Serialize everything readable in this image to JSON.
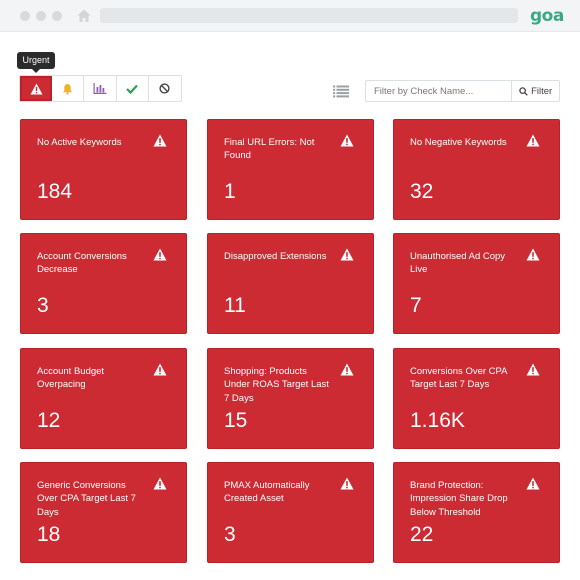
{
  "browser": {
    "logo": "goa"
  },
  "toolbar": {
    "tooltip": "Urgent",
    "filter_placeholder": "Filter by Check Name...",
    "filter_button_label": "Filter"
  },
  "cards": [
    {
      "title": "No Active Keywords",
      "value": "184"
    },
    {
      "title": "Final URL Errors: Not Found",
      "value": "1"
    },
    {
      "title": "No Negative Keywords",
      "value": "32"
    },
    {
      "title": "Account Conversions Decrease",
      "value": "3"
    },
    {
      "title": "Disapproved Extensions",
      "value": "11"
    },
    {
      "title": "Unauthorised Ad Copy Live",
      "value": "7"
    },
    {
      "title": "Account Budget Overpacing",
      "value": "12"
    },
    {
      "title": "Shopping: Products Under ROAS Target Last 7 Days",
      "value": "15"
    },
    {
      "title": "Conversions Over CPA Target Last 7 Days",
      "value": "1.16K"
    },
    {
      "title": "Generic Conversions Over CPA Target Last 7 Days",
      "value": "18"
    },
    {
      "title": "PMAX Automatically Created Asset",
      "value": "3"
    },
    {
      "title": "Brand Protection: Impression Share Drop Below Threshold",
      "value": "22"
    }
  ],
  "colors": {
    "card": "#cc2b34",
    "accent_green": "#3aa981"
  }
}
